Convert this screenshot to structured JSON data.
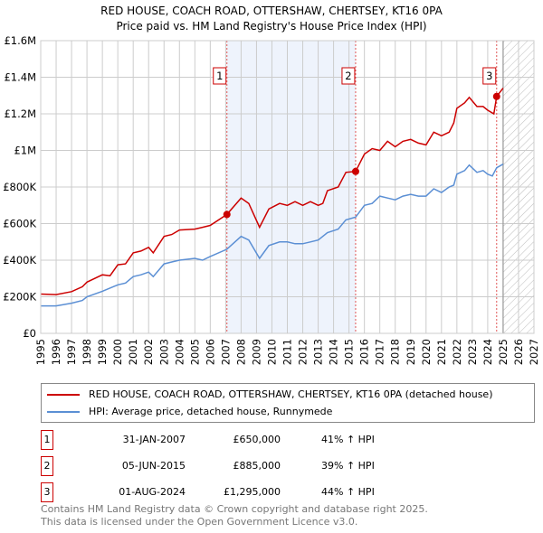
{
  "title": "RED HOUSE, COACH ROAD, OTTERSHAW, CHERTSEY, KT16 0PA",
  "subtitle": "Price paid vs. HM Land Registry's House Price Index (HPI)",
  "chart_data": {
    "type": "line",
    "title": "RED HOUSE, COACH ROAD, OTTERSHAW, CHERTSEY, KT16 0PA",
    "subtitle": "Price paid vs. HM Land Registry's House Price Index (HPI)",
    "xlim": [
      1995,
      2027
    ],
    "ylim": [
      0,
      1600000
    ],
    "x_ticks": [
      "1995",
      "1996",
      "1997",
      "1998",
      "1999",
      "2000",
      "2001",
      "2002",
      "2003",
      "2004",
      "2005",
      "2006",
      "2007",
      "2008",
      "2009",
      "2010",
      "2011",
      "2012",
      "2013",
      "2014",
      "2015",
      "2016",
      "2017",
      "2018",
      "2019",
      "2020",
      "2021",
      "2022",
      "2023",
      "2024",
      "2025",
      "2026",
      "2027"
    ],
    "y_ticks": [
      {
        "v": 0,
        "label": "£0"
      },
      {
        "v": 200000,
        "label": "£200K"
      },
      {
        "v": 400000,
        "label": "£400K"
      },
      {
        "v": 600000,
        "label": "£600K"
      },
      {
        "v": 800000,
        "label": "£800K"
      },
      {
        "v": 1000000,
        "label": "£1M"
      },
      {
        "v": 1200000,
        "label": "£1.2M"
      },
      {
        "v": 1400000,
        "label": "£1.4M"
      },
      {
        "v": 1600000,
        "label": "£1.6M"
      }
    ],
    "shaded_range": [
      2007.08,
      2015.43
    ],
    "forecast_from": 2025.0,
    "series": [
      {
        "name": "RED HOUSE, COACH ROAD, OTTERSHAW, CHERTSEY, KT16 0PA (detached house)",
        "color": "#cc0000",
        "x": [
          1995,
          1996,
          1997,
          1997.7,
          1998,
          1999,
          1999.5,
          2000,
          2000.5,
          2001,
          2001.5,
          2002,
          2002.3,
          2003,
          2003.5,
          2004,
          2005,
          2005.5,
          2006,
          2007.08,
          2008,
          2008.5,
          2009.2,
          2009.8,
          2010.5,
          2011,
          2011.5,
          2012,
          2012.5,
          2013,
          2013.3,
          2013.6,
          2014.3,
          2014.8,
          2015.43,
          2016,
          2016.5,
          2017,
          2017.5,
          2018,
          2018.5,
          2019,
          2019.5,
          2020,
          2020.5,
          2021,
          2021.5,
          2021.8,
          2022,
          2022.5,
          2022.8,
          2023.3,
          2023.7,
          2024,
          2024.4,
          2024.58,
          2025
        ],
        "y": [
          215000,
          212000,
          228000,
          255000,
          280000,
          320000,
          315000,
          375000,
          380000,
          440000,
          450000,
          470000,
          440000,
          530000,
          540000,
          565000,
          570000,
          580000,
          590000,
          650000,
          740000,
          710000,
          580000,
          680000,
          710000,
          700000,
          720000,
          700000,
          720000,
          700000,
          710000,
          780000,
          800000,
          880000,
          885000,
          980000,
          1010000,
          1000000,
          1050000,
          1020000,
          1050000,
          1060000,
          1040000,
          1030000,
          1100000,
          1080000,
          1100000,
          1150000,
          1230000,
          1260000,
          1290000,
          1240000,
          1240000,
          1220000,
          1200000,
          1295000,
          1340000
        ]
      },
      {
        "name": "HPI: Average price, detached house, Runnymede",
        "color": "#5b8fd4",
        "x": [
          1995,
          1996,
          1997,
          1997.7,
          1998,
          1999,
          2000,
          2000.5,
          2001,
          2001.5,
          2002,
          2002.3,
          2003,
          2003.5,
          2004,
          2005,
          2005.5,
          2006,
          2007.08,
          2008,
          2008.5,
          2009.2,
          2009.8,
          2010.5,
          2011,
          2011.5,
          2012,
          2012.5,
          2013,
          2013.6,
          2014.3,
          2014.8,
          2015.43,
          2016,
          2016.5,
          2017,
          2017.5,
          2018,
          2018.5,
          2019,
          2019.5,
          2020,
          2020.5,
          2021,
          2021.5,
          2021.8,
          2022,
          2022.5,
          2022.8,
          2023.3,
          2023.7,
          2024,
          2024.3,
          2024.58,
          2025
        ],
        "y": [
          150000,
          150000,
          165000,
          180000,
          200000,
          230000,
          265000,
          275000,
          310000,
          320000,
          335000,
          310000,
          380000,
          390000,
          400000,
          410000,
          400000,
          420000,
          460000,
          530000,
          510000,
          410000,
          480000,
          500000,
          500000,
          490000,
          490000,
          500000,
          510000,
          550000,
          570000,
          620000,
          635000,
          700000,
          710000,
          750000,
          740000,
          730000,
          750000,
          760000,
          750000,
          750000,
          790000,
          770000,
          800000,
          810000,
          870000,
          890000,
          920000,
          880000,
          890000,
          870000,
          860000,
          905000,
          925000
        ]
      }
    ],
    "sales": [
      {
        "id": "1",
        "x": 2007.08,
        "y": 650000
      },
      {
        "id": "2",
        "x": 2015.43,
        "y": 885000
      },
      {
        "id": "3",
        "x": 2024.58,
        "y": 1295000
      }
    ]
  },
  "legend": [
    {
      "label": "RED HOUSE, COACH ROAD, OTTERSHAW, CHERTSEY, KT16 0PA (detached house)",
      "color": "#cc0000"
    },
    {
      "label": "HPI: Average price, detached house, Runnymede",
      "color": "#5b8fd4"
    }
  ],
  "transactions": [
    {
      "id": "1",
      "date": "31-JAN-2007",
      "price": "£650,000",
      "hpi": "41% ↑ HPI"
    },
    {
      "id": "2",
      "date": "05-JUN-2015",
      "price": "£885,000",
      "hpi": "39% ↑ HPI"
    },
    {
      "id": "3",
      "date": "01-AUG-2024",
      "price": "£1,295,000",
      "hpi": "44% ↑ HPI"
    }
  ],
  "footer": [
    "Contains HM Land Registry data © Crown copyright and database right 2025.",
    "This data is licensed under the Open Government Licence v3.0."
  ]
}
